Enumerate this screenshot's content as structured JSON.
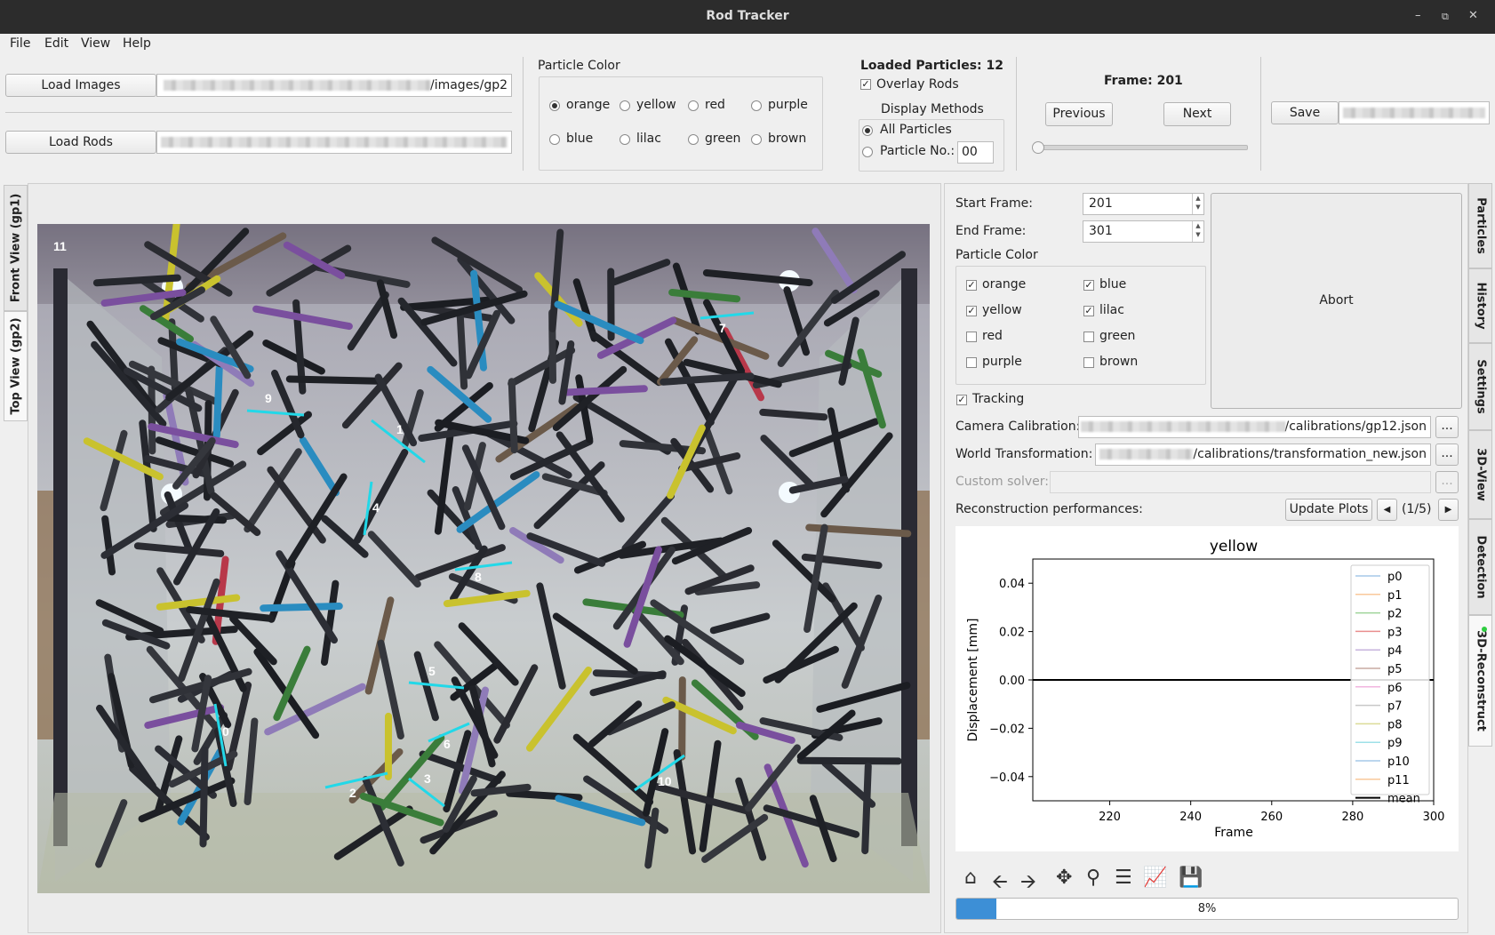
{
  "window": {
    "title": "Rod Tracker"
  },
  "menu": [
    "File",
    "Edit",
    "View",
    "Help"
  ],
  "io": {
    "load_images_label": "Load Images",
    "images_path_suffix": "/images/gp2",
    "load_rods_label": "Load Rods"
  },
  "particle_color": {
    "title": "Particle Color",
    "options": [
      "orange",
      "yellow",
      "red",
      "purple",
      "blue",
      "lilac",
      "green",
      "brown"
    ],
    "selected": "orange"
  },
  "loaded": {
    "label": "Loaded Particles: 12",
    "overlay_label": "Overlay Rods",
    "display_methods_label": "Display Methods",
    "all_particles_label": "All Particles",
    "particle_no_label": "Particle No.:",
    "particle_no_value": "00"
  },
  "frame_nav": {
    "frame_label": "Frame: 201",
    "previous_label": "Previous",
    "next_label": "Next",
    "slider_fraction": 0.0
  },
  "save": {
    "label": "Save"
  },
  "left_tabs": [
    "Front View (gp1)",
    "Top View (gp2)"
  ],
  "right_tabs": [
    "Particles",
    "History",
    "Settings",
    "3D-View",
    "Detection",
    "3D-Reconstruct"
  ],
  "image_overlay": {
    "corner_label": "11",
    "rod_labels": [
      "0",
      "1",
      "2",
      "3",
      "4",
      "5",
      "6",
      "7",
      "8",
      "9",
      "10"
    ]
  },
  "recon": {
    "start_frame_label": "Start Frame:",
    "start_frame_value": "201",
    "end_frame_label": "End Frame:",
    "end_frame_value": "301",
    "color_label": "Particle Color",
    "colors": [
      {
        "name": "orange",
        "checked": true
      },
      {
        "name": "blue",
        "checked": true
      },
      {
        "name": "yellow",
        "checked": true
      },
      {
        "name": "lilac",
        "checked": true
      },
      {
        "name": "red",
        "checked": false
      },
      {
        "name": "green",
        "checked": false
      },
      {
        "name": "purple",
        "checked": false
      },
      {
        "name": "brown",
        "checked": false
      }
    ],
    "abort_label": "Abort",
    "tracking_label": "Tracking",
    "camera_calibration_label": "Camera Calibration:",
    "camera_calibration_suffix": "/calibrations/gp12.json",
    "world_transformation_label": "World Transformation:",
    "world_transformation_suffix": "/calibrations/transformation_new.json",
    "custom_solver_label": "Custom solver:",
    "browse_label": "...",
    "performances_label": "Reconstruction performances:",
    "update_plots_label": "Update Plots",
    "page_indicator": "(1/5)",
    "progress_text": "8%",
    "progress_fraction": 0.08
  },
  "chart_data": {
    "type": "line",
    "title": "yellow",
    "xlabel": "Frame",
    "ylabel": "Displacement [mm]",
    "xlim": [
      201,
      300
    ],
    "ylim": [
      -0.05,
      0.05
    ],
    "xticks": [
      220,
      240,
      260,
      280,
      300
    ],
    "yticks": [
      0.04,
      0.02,
      0.0,
      -0.02,
      -0.04
    ],
    "ytick_labels": [
      "0.04",
      "0.02",
      "0.00",
      "−0.02",
      "−0.04"
    ],
    "legend_placement": "top-right",
    "series": [
      {
        "name": "p0",
        "color": "#a6c9e8"
      },
      {
        "name": "p1",
        "color": "#f9c99b"
      },
      {
        "name": "p2",
        "color": "#9fd49a"
      },
      {
        "name": "p3",
        "color": "#e98f8f"
      },
      {
        "name": "p4",
        "color": "#c7b3dc"
      },
      {
        "name": "p5",
        "color": "#c9aaa2"
      },
      {
        "name": "p6",
        "color": "#f1b6df"
      },
      {
        "name": "p7",
        "color": "#c8c8c8"
      },
      {
        "name": "p8",
        "color": "#dcdc98"
      },
      {
        "name": "p9",
        "color": "#9ee0e8"
      },
      {
        "name": "p10",
        "color": "#a6c9e8"
      },
      {
        "name": "p11",
        "color": "#f9c99b"
      },
      {
        "name": "mean",
        "color": "#000000",
        "x": [
          201,
          300
        ],
        "y": [
          0,
          0
        ]
      }
    ]
  },
  "plot_toolbar": [
    "home-icon",
    "back-icon",
    "forward-icon",
    "pan-icon",
    "zoom-icon",
    "configure-icon",
    "edit-axis-icon",
    "save-icon"
  ]
}
